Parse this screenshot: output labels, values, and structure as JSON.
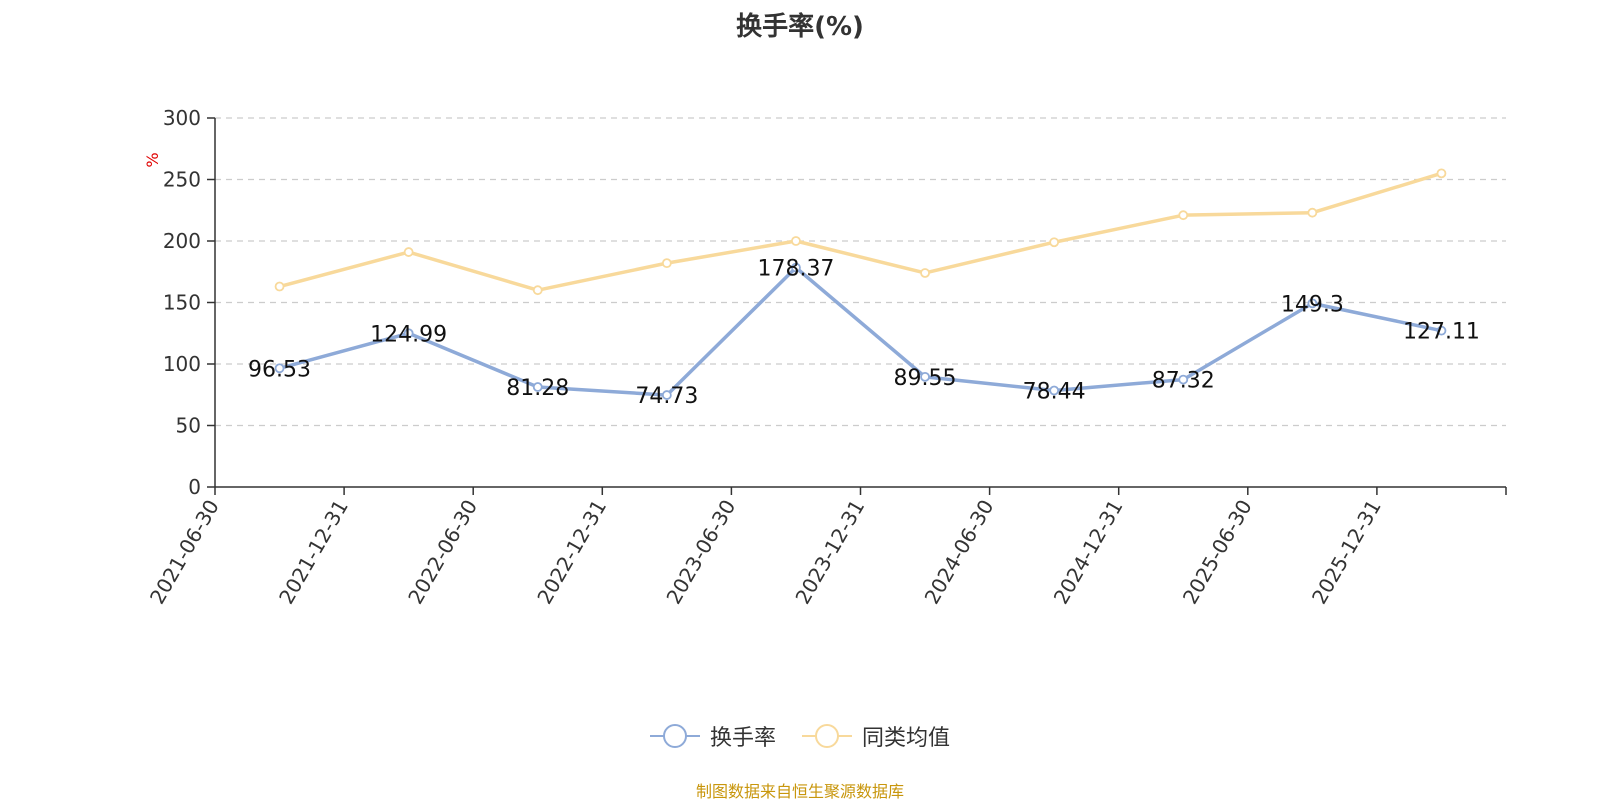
{
  "chart_data": {
    "type": "line",
    "title": "换手率(%)",
    "ylabel": "%",
    "xlabel": "",
    "ylim": [
      0,
      300
    ],
    "yticks": [
      0,
      50,
      100,
      150,
      200,
      250,
      300
    ],
    "categories": [
      "2021-06-30",
      "2021-12-31",
      "2022-06-30",
      "2022-12-31",
      "2023-06-30",
      "2023-12-31",
      "2024-06-30",
      "2024-12-31",
      "2025-06-30",
      "2025-12-31"
    ],
    "series": [
      {
        "name": "换手率",
        "color": "#8eaad8",
        "values": [
          96.53,
          124.99,
          81.28,
          74.73,
          178.37,
          89.55,
          78.44,
          87.32,
          149.3,
          127.11
        ],
        "labels": [
          "96.53",
          "124.99",
          "81.28",
          "74.73",
          "178.37",
          "89.55",
          "78.44",
          "87.32",
          "149.3",
          "127.11"
        ]
      },
      {
        "name": "同类均值",
        "color": "#f8d99b",
        "values": [
          163,
          191,
          160,
          182,
          200,
          174,
          199,
          221,
          223,
          255
        ]
      }
    ],
    "grid": true,
    "legend": "bottom-center"
  },
  "footer": "制图数据来自恒生聚源数据库"
}
